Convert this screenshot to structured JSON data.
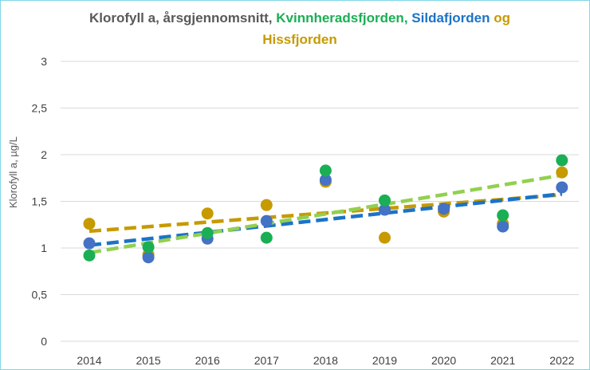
{
  "chart_data": {
    "type": "scatter",
    "title_parts": {
      "part1": "Klorofyll a, årsgjennomsnitt,",
      "part2": "Kvinnheradsfjorden,",
      "part3": "Sildafjorden",
      "part4": "og",
      "part5": "Hissfjorden"
    },
    "ylabel": "Klorofyll a, µg/L",
    "ylim": [
      0,
      3
    ],
    "yticks": [
      "0",
      "0,5",
      "1",
      "1,5",
      "2",
      "2,5",
      "3"
    ],
    "categories": [
      "2014",
      "2015",
      "2016",
      "2017",
      "2018",
      "2019",
      "2020",
      "2021",
      "2022"
    ],
    "grid": true,
    "series": [
      {
        "color": "#c79a00",
        "values": [
          1.26,
          0.93,
          1.37,
          1.46,
          1.71,
          1.11,
          1.39,
          1.26,
          1.81
        ],
        "trend": [
          1.18,
          1.57
        ],
        "trend_color": "#c79a00"
      },
      {
        "color": "#4472c4",
        "values": [
          1.05,
          0.9,
          1.1,
          1.29,
          1.73,
          1.41,
          1.42,
          1.23,
          1.65
        ],
        "trend": [
          1.03,
          1.58
        ],
        "trend_color": "#1a73c8"
      },
      {
        "color": "#1aaf54",
        "values": [
          0.92,
          1.01,
          1.16,
          1.11,
          1.83,
          1.51,
          null,
          1.35,
          1.94
        ],
        "trend": [
          0.95,
          1.78
        ],
        "trend_color": "#92d050"
      }
    ]
  }
}
